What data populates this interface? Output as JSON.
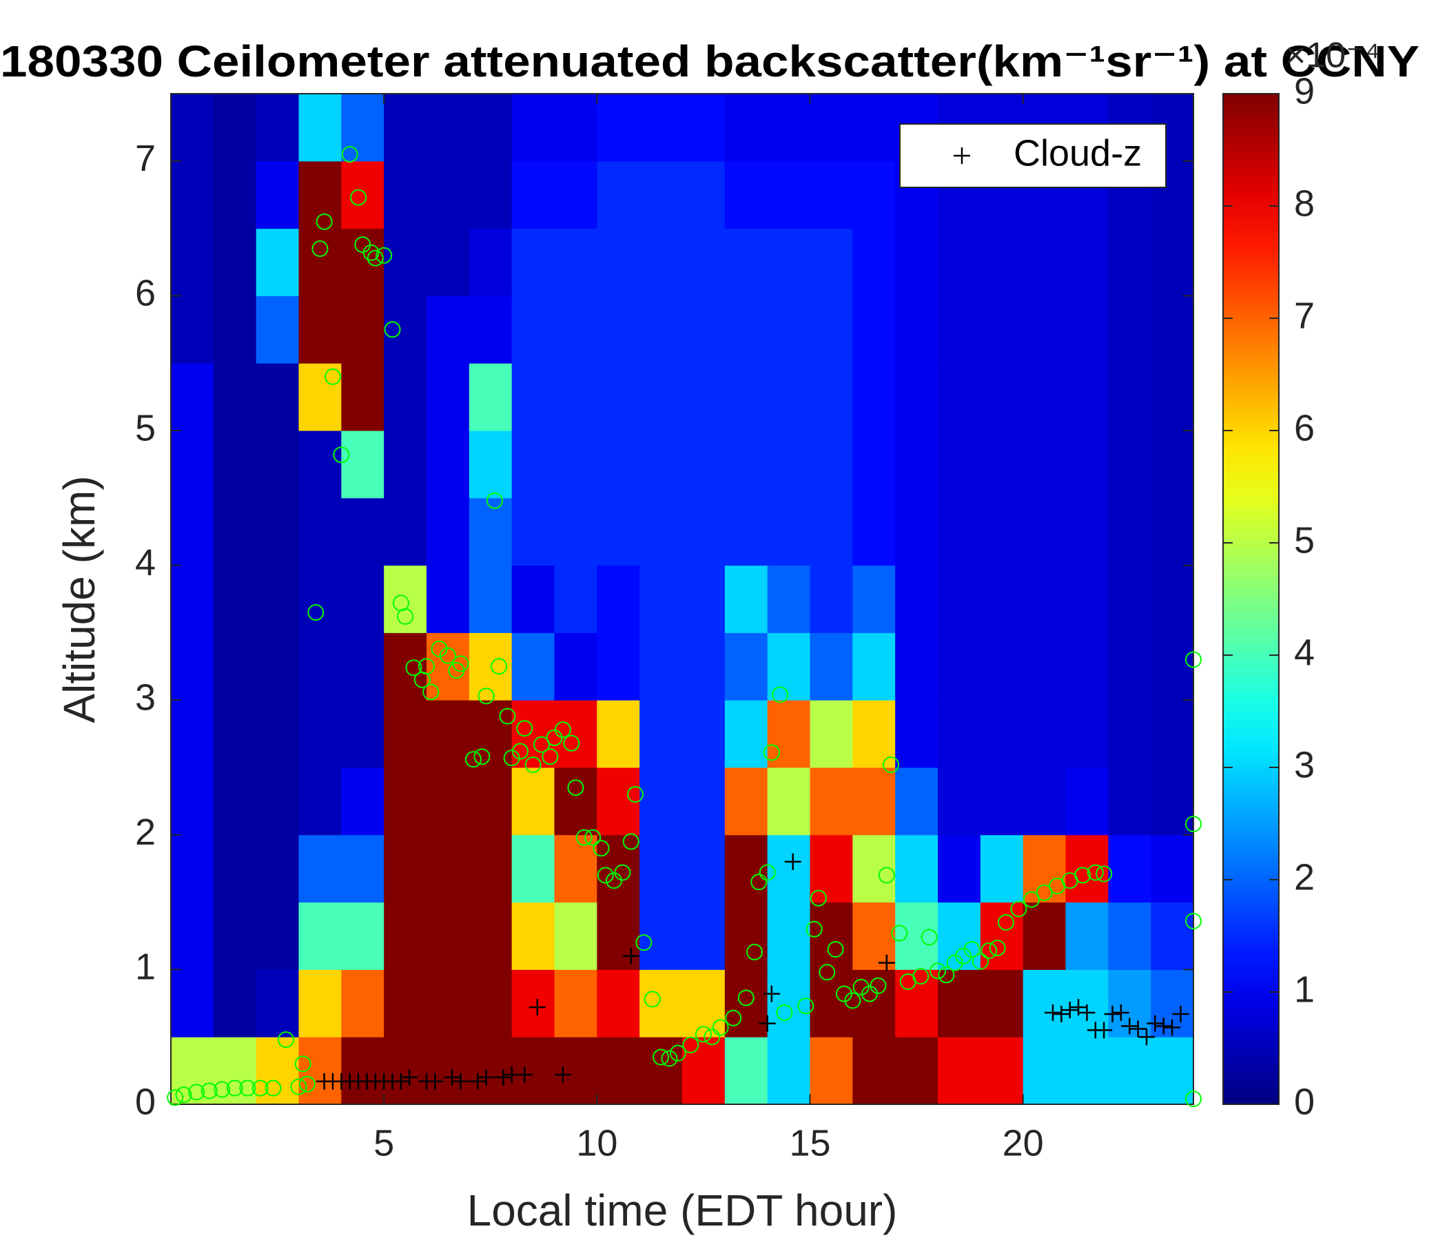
{
  "chart_data": {
    "type": "heatmap",
    "title": "180330 Ceilometer attenuated backscatter(km⁻¹sr⁻¹) at CCNY",
    "xlabel": "Local time (EDT hour)",
    "ylabel": "Altitude (km)",
    "xlim": [
      0,
      24
    ],
    "xticks": [
      5,
      10,
      15,
      20
    ],
    "ylim": [
      0,
      7.5
    ],
    "yticks": [
      0,
      1,
      2,
      3,
      4,
      5,
      6,
      7
    ],
    "colormap": "jet",
    "clim": [
      0,
      9
    ],
    "cticks": [
      0,
      1,
      2,
      3,
      4,
      5,
      6,
      7,
      8,
      9
    ],
    "colorbar_label": "×10⁻⁴",
    "xbins": [
      0,
      1,
      2,
      3,
      4,
      5,
      6,
      7,
      8,
      9,
      10,
      11,
      12,
      13,
      14,
      15,
      16,
      17,
      18,
      19,
      20,
      21,
      22,
      23,
      24
    ],
    "ybins": [
      0,
      0.5,
      1,
      1.5,
      2,
      2.5,
      3,
      3.5,
      4,
      4.5,
      5,
      5.5,
      6,
      6.5,
      7,
      7.5
    ],
    "z": [
      [
        5,
        5,
        6,
        7,
        9,
        9,
        9,
        9,
        9,
        9,
        9,
        9,
        8,
        4,
        3,
        7,
        9,
        9,
        8,
        8,
        3,
        3,
        3,
        3
      ],
      [
        1,
        0.3,
        0.5,
        6,
        7,
        9,
        9,
        9,
        8,
        7,
        8,
        6,
        6,
        9,
        3,
        9,
        9,
        8,
        9,
        9,
        3,
        3,
        2.5,
        2
      ],
      [
        1,
        0.3,
        0.3,
        4,
        4,
        9,
        9,
        9,
        6,
        5,
        9,
        1.5,
        1.5,
        9,
        3,
        9,
        7,
        4,
        3,
        8,
        9,
        2.5,
        2,
        1.5
      ],
      [
        1,
        0.3,
        0.3,
        2,
        2,
        9,
        9,
        9,
        4,
        7,
        9,
        1.5,
        1.5,
        9,
        3,
        8,
        5,
        3,
        1,
        3,
        7,
        8,
        1.2,
        1
      ],
      [
        1,
        0.3,
        0.3,
        0.5,
        1,
        9,
        9,
        9,
        6,
        9,
        8,
        1.5,
        1.5,
        7,
        5,
        7,
        7,
        2,
        0.8,
        0.8,
        0.8,
        1,
        0.6,
        0.5
      ],
      [
        1,
        0.3,
        0.3,
        0.5,
        0.5,
        9,
        9,
        9,
        8,
        8,
        6,
        1.5,
        1.5,
        3,
        7,
        5,
        6,
        1,
        0.8,
        0.8,
        0.8,
        0.8,
        0.6,
        0.5
      ],
      [
        1,
        0.3,
        0.3,
        0.5,
        0.5,
        9,
        7,
        6,
        2,
        1,
        1.2,
        1.5,
        1.5,
        2,
        3,
        2,
        3,
        1,
        0.8,
        0.8,
        0.8,
        0.8,
        0.6,
        0.5
      ],
      [
        1,
        0.3,
        0.3,
        0.5,
        0.5,
        5,
        1,
        2,
        1,
        1.5,
        1.2,
        1.5,
        1.5,
        3,
        2,
        1.5,
        2,
        1,
        0.8,
        0.8,
        0.8,
        0.8,
        0.6,
        0.5
      ],
      [
        1,
        0.3,
        0.3,
        0.5,
        0.5,
        0.5,
        1,
        2,
        1.5,
        1.5,
        1.5,
        1.5,
        1.5,
        1.5,
        1.5,
        1.5,
        1.2,
        1,
        0.8,
        0.8,
        0.8,
        0.8,
        0.6,
        0.5
      ],
      [
        1,
        0.3,
        0.3,
        0.5,
        4,
        0.5,
        1,
        3,
        1.5,
        1.5,
        1.5,
        1.5,
        1.5,
        1.5,
        1.5,
        1.5,
        1.2,
        1,
        0.8,
        0.8,
        0.8,
        0.8,
        0.6,
        0.5
      ],
      [
        1,
        0.3,
        0.3,
        6,
        9,
        0.5,
        1,
        4,
        1.5,
        1.5,
        1.5,
        1.5,
        1.5,
        1.5,
        1.5,
        1.5,
        1.2,
        1,
        0.8,
        0.8,
        0.8,
        0.8,
        0.6,
        0.5
      ],
      [
        0.5,
        0.3,
        2,
        9,
        9,
        0.5,
        1,
        1,
        1.5,
        1.5,
        1.5,
        1.5,
        1.5,
        1.5,
        1.5,
        1.5,
        1.2,
        1,
        0.8,
        0.8,
        0.8,
        0.8,
        0.6,
        0.5
      ],
      [
        0.5,
        0.3,
        3,
        9,
        9,
        0.5,
        0.5,
        0.8,
        1.5,
        1.5,
        1.5,
        1.5,
        1.5,
        1.5,
        1.5,
        1.5,
        1.2,
        1,
        0.8,
        0.8,
        0.8,
        0.8,
        0.6,
        0.5
      ],
      [
        0.5,
        0.3,
        1,
        9,
        8,
        0.5,
        0.5,
        0.5,
        1.2,
        1.2,
        1.5,
        1.5,
        1.5,
        1.2,
        1.2,
        1.2,
        1.2,
        1,
        0.8,
        0.8,
        0.8,
        0.8,
        0.6,
        0.5
      ],
      [
        0.5,
        0.3,
        0.5,
        3,
        2,
        0.5,
        0.5,
        0.5,
        1,
        1,
        1.2,
        1.2,
        1.2,
        1,
        1,
        1,
        1,
        1,
        0.8,
        0.8,
        0.8,
        0.8,
        0.6,
        0.5
      ]
    ],
    "legend": "northeast",
    "series": [
      {
        "color": "#00ff00",
        "marker": "o",
        "x": [
          0.1,
          0.3,
          0.6,
          0.9,
          1.2,
          1.5,
          1.8,
          2.1,
          2.4,
          2.7,
          3.0,
          3.1,
          3.2,
          3.5,
          3.6,
          3.4,
          3.8,
          4.0,
          4.2,
          4.4,
          4.5,
          4.7,
          4.8,
          5.0,
          5.2,
          5.4,
          5.5,
          5.7,
          5.9,
          6.0,
          6.1,
          6.3,
          6.5,
          6.7,
          6.8,
          7.1,
          7.3,
          7.4,
          7.6,
          7.7,
          7.9,
          8.0,
          8.2,
          8.3,
          8.5,
          8.7,
          8.9,
          9.0,
          9.2,
          9.4,
          9.5,
          9.7,
          9.9,
          10.1,
          10.2,
          10.4,
          10.6,
          10.8,
          10.9,
          11.1,
          11.3,
          11.5,
          11.7,
          11.9,
          12.2,
          12.5,
          12.7,
          12.9,
          13.2,
          13.5,
          13.7,
          13.8,
          14.0,
          14.1,
          14.3,
          14.4,
          14.9,
          15.1,
          15.2,
          15.4,
          15.6,
          15.8,
          16.0,
          16.2,
          16.4,
          16.6,
          16.8,
          16.9,
          17.1,
          17.3,
          17.6,
          17.8,
          18.0,
          18.2,
          18.4,
          18.6,
          18.8,
          19.0,
          19.2,
          19.4,
          19.6,
          19.9,
          20.2,
          20.5,
          20.8,
          21.1,
          21.4,
          21.7,
          21.9,
          24.0,
          24.0,
          24.0,
          24.0
        ],
        "values": [
          0.05,
          0.07,
          0.09,
          0.1,
          0.11,
          0.12,
          0.12,
          0.12,
          0.12,
          0.48,
          0.13,
          0.3,
          0.15,
          6.35,
          6.55,
          3.65,
          5.4,
          4.82,
          7.05,
          6.73,
          6.38,
          6.32,
          6.28,
          6.3,
          5.75,
          3.72,
          3.62,
          3.24,
          3.15,
          3.25,
          3.06,
          3.38,
          3.33,
          3.22,
          3.27,
          2.56,
          2.58,
          3.03,
          4.48,
          3.25,
          2.88,
          2.57,
          2.62,
          2.79,
          2.52,
          2.67,
          2.58,
          2.72,
          2.78,
          2.68,
          2.35,
          1.98,
          1.98,
          1.9,
          1.7,
          1.66,
          1.72,
          1.95,
          2.3,
          1.2,
          0.78,
          0.35,
          0.34,
          0.38,
          0.44,
          0.52,
          0.5,
          0.57,
          0.64,
          0.79,
          1.13,
          1.65,
          1.72,
          2.61,
          3.04,
          0.68,
          0.73,
          1.3,
          1.53,
          0.98,
          1.15,
          0.82,
          0.77,
          0.87,
          0.82,
          0.88,
          1.7,
          2.52,
          1.27,
          0.91,
          0.95,
          1.24,
          0.99,
          0.96,
          1.05,
          1.1,
          1.15,
          1.06,
          1.14,
          1.16,
          1.35,
          1.45,
          1.52,
          1.57,
          1.62,
          1.66,
          1.7,
          1.72,
          1.71,
          3.3,
          2.08,
          1.36,
          0.04
        ]
      },
      {
        "name": "Cloud-z",
        "color": "#000000",
        "marker": "+",
        "x": [
          3.6,
          3.8,
          4.0,
          4.2,
          4.4,
          4.6,
          4.8,
          5.0,
          5.2,
          5.4,
          5.6,
          6.0,
          6.2,
          6.6,
          6.8,
          7.2,
          7.4,
          7.8,
          8.0,
          8.3,
          8.6,
          9.2,
          10.8,
          14.0,
          14.1,
          14.6,
          16.8,
          20.7,
          20.9,
          21.1,
          21.3,
          21.5,
          21.7,
          21.9,
          22.1,
          22.3,
          22.5,
          22.7,
          22.9,
          23.1,
          23.3,
          23.5,
          23.7
        ],
        "values": [
          0.17,
          0.17,
          0.17,
          0.17,
          0.17,
          0.17,
          0.17,
          0.17,
          0.17,
          0.17,
          0.2,
          0.17,
          0.17,
          0.2,
          0.17,
          0.17,
          0.2,
          0.2,
          0.22,
          0.22,
          0.72,
          0.22,
          1.1,
          0.6,
          0.82,
          1.8,
          1.05,
          0.68,
          0.67,
          0.7,
          0.72,
          0.68,
          0.55,
          0.55,
          0.67,
          0.68,
          0.58,
          0.56,
          0.5,
          0.6,
          0.58,
          0.57,
          0.67
        ]
      }
    ]
  }
}
